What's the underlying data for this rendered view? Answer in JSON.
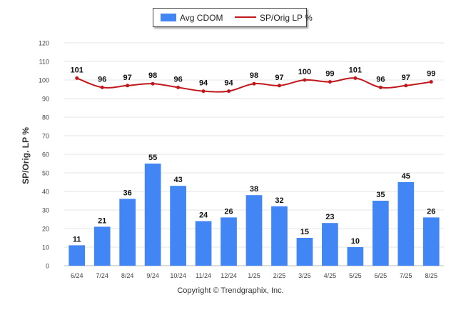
{
  "legend": {
    "bar_label": "Avg CDOM",
    "line_label": "SP/Orig LP %"
  },
  "footer": "Copyright © Trendgraphix, Inc.",
  "colors": {
    "bar": "#4285f4",
    "line": "#c0181c",
    "grid": "#e6e6e6",
    "text": "#333333"
  },
  "chart_data": {
    "type": "bar",
    "title": "",
    "xlabel": "",
    "ylabel": "SP/Orig. LP %",
    "ylim": [
      0,
      120
    ],
    "yticks": [
      0,
      10,
      20,
      30,
      40,
      50,
      60,
      70,
      80,
      90,
      100,
      110,
      120
    ],
    "grid": true,
    "legend_position": "top-center",
    "categories": [
      "6/24",
      "7/24",
      "8/24",
      "9/24",
      "10/24",
      "11/24",
      "12/24",
      "1/25",
      "2/25",
      "3/25",
      "4/25",
      "5/25",
      "6/25",
      "7/25",
      "8/25"
    ],
    "series": [
      {
        "name": "Avg CDOM",
        "type": "bar",
        "values": [
          11,
          21,
          36,
          55,
          43,
          24,
          26,
          38,
          32,
          15,
          23,
          10,
          35,
          45,
          26
        ]
      },
      {
        "name": "SP/Orig LP %",
        "type": "line",
        "values": [
          101,
          96,
          97,
          98,
          96,
          94,
          94,
          98,
          97,
          100,
          99,
          101,
          96,
          97,
          99
        ]
      }
    ]
  }
}
